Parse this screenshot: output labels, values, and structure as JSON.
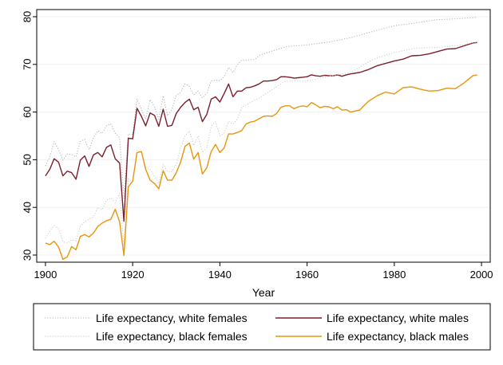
{
  "chart_data": {
    "type": "line",
    "xlabel": "Year",
    "ylabel": "",
    "xlim": [
      1898,
      2002
    ],
    "ylim": [
      28.5,
      81.5
    ],
    "xticks": [
      1900,
      1920,
      1940,
      1960,
      1980,
      2000
    ],
    "yticks": [
      30,
      40,
      50,
      60,
      70,
      80
    ],
    "grid": "horizontal",
    "legend_position": "bottom",
    "colors": {
      "white_females": "#b0b0b0",
      "white_males": "#7a1f2b",
      "black_females": "#c8c8c8",
      "black_males": "#e8950b",
      "grid": "#eef0f3",
      "plot_border": "#000000",
      "legend_border": "#000000"
    },
    "series": [
      {
        "name": "Life expectancy, white females",
        "style": "dotted",
        "x": [
          1900,
          1901,
          1902,
          1903,
          1904,
          1905,
          1906,
          1907,
          1908,
          1909,
          1910,
          1911,
          1912,
          1913,
          1914,
          1915,
          1916,
          1917,
          1918,
          1919,
          1920,
          1921,
          1922,
          1923,
          1924,
          1925,
          1926,
          1927,
          1928,
          1929,
          1930,
          1931,
          1932,
          1933,
          1934,
          1935,
          1936,
          1937,
          1938,
          1939,
          1940,
          1941,
          1942,
          1943,
          1944,
          1945,
          1946,
          1947,
          1948,
          1949,
          1950,
          1955,
          1960,
          1965,
          1970,
          1975,
          1980,
          1985,
          1990,
          1995,
          1999
        ],
        "values": [
          48.7,
          50.6,
          53.8,
          52.1,
          49.9,
          51.2,
          51.1,
          50.6,
          53.8,
          54.3,
          52.1,
          54.6,
          56.1,
          55.5,
          57.1,
          57.5,
          55.6,
          54.6,
          41.9,
          55.4,
          55.3,
          62.7,
          60.6,
          58.5,
          62.6,
          61.1,
          58.5,
          63.4,
          59.2,
          60.5,
          63.5,
          64.1,
          65.9,
          65.4,
          63.6,
          64.4,
          63.0,
          63.9,
          66.5,
          66.7,
          66.6,
          67.4,
          69.4,
          68.3,
          69.9,
          70.9,
          70.9,
          71.0,
          71.0,
          71.9,
          72.2,
          73.7,
          74.1,
          74.7,
          75.6,
          76.9,
          78.1,
          78.7,
          79.4,
          79.6,
          79.9
        ]
      },
      {
        "name": "Life expectancy, white males",
        "style": "solid",
        "x": [
          1900,
          1901,
          1902,
          1903,
          1904,
          1905,
          1906,
          1907,
          1908,
          1909,
          1910,
          1911,
          1912,
          1913,
          1914,
          1915,
          1916,
          1917,
          1918,
          1919,
          1920,
          1921,
          1922,
          1923,
          1924,
          1925,
          1926,
          1927,
          1928,
          1929,
          1930,
          1931,
          1932,
          1933,
          1934,
          1935,
          1936,
          1937,
          1938,
          1939,
          1940,
          1941,
          1942,
          1943,
          1944,
          1945,
          1946,
          1947,
          1948,
          1949,
          1950,
          1951,
          1952,
          1953,
          1954,
          1955,
          1956,
          1957,
          1958,
          1959,
          1960,
          1961,
          1962,
          1963,
          1964,
          1965,
          1966,
          1967,
          1968,
          1969,
          1970,
          1972,
          1974,
          1976,
          1978,
          1980,
          1982,
          1984,
          1986,
          1988,
          1990,
          1992,
          1994,
          1996,
          1998,
          1999
        ],
        "values": [
          46.6,
          48.0,
          50.2,
          49.5,
          46.6,
          47.6,
          47.3,
          45.9,
          49.9,
          50.8,
          48.6,
          51.0,
          51.5,
          50.6,
          52.6,
          53.1,
          50.2,
          49.3,
          37.1,
          54.5,
          54.4,
          60.8,
          59.1,
          57.1,
          59.8,
          59.3,
          57.0,
          60.6,
          57.0,
          57.2,
          59.7,
          61.0,
          62.0,
          62.7,
          60.5,
          61.0,
          58.0,
          59.5,
          62.7,
          63.2,
          62.1,
          63.9,
          65.9,
          63.2,
          64.4,
          64.4,
          65.1,
          65.2,
          65.5,
          65.9,
          66.5,
          66.5,
          66.6,
          66.8,
          67.4,
          67.4,
          67.3,
          67.1,
          67.2,
          67.3,
          67.4,
          67.8,
          67.6,
          67.5,
          67.7,
          67.6,
          67.6,
          67.8,
          67.5,
          67.8,
          68.0,
          68.3,
          68.9,
          69.7,
          70.2,
          70.7,
          71.1,
          71.8,
          71.9,
          72.2,
          72.7,
          73.2,
          73.3,
          73.9,
          74.5,
          74.6
        ]
      },
      {
        "name": "Life expectancy, black females",
        "style": "dotted",
        "x": [
          1900,
          1901,
          1902,
          1903,
          1904,
          1905,
          1906,
          1907,
          1908,
          1909,
          1910,
          1911,
          1912,
          1913,
          1914,
          1915,
          1916,
          1917,
          1918,
          1919,
          1920,
          1921,
          1922,
          1923,
          1924,
          1925,
          1926,
          1927,
          1928,
          1929,
          1930,
          1931,
          1932,
          1933,
          1934,
          1935,
          1936,
          1937,
          1938,
          1939,
          1940,
          1941,
          1942,
          1943,
          1944,
          1945,
          1946,
          1947,
          1948,
          1949,
          1950,
          1955,
          1960,
          1965,
          1970,
          1975,
          1980,
          1985,
          1990,
          1995,
          1999
        ],
        "values": [
          33.5,
          35.0,
          36.2,
          35.5,
          32.8,
          32.5,
          33.2,
          33.0,
          36.0,
          37.0,
          37.5,
          38.0,
          40.0,
          39.5,
          41.5,
          42.0,
          41.0,
          43.0,
          32.0,
          46.0,
          45.2,
          52.0,
          51.5,
          48.5,
          48.0,
          46.5,
          45.0,
          49.0,
          47.5,
          47.5,
          49.0,
          52.5,
          55.0,
          56.0,
          53.0,
          55.0,
          51.5,
          52.5,
          57.0,
          58.0,
          55.0,
          55.5,
          58.0,
          57.5,
          58.5,
          61.0,
          61.5,
          62.0,
          62.5,
          63.0,
          63.5,
          66.5,
          66.5,
          67.5,
          68.3,
          71.0,
          72.5,
          73.4,
          73.6,
          74.0,
          74.7
        ]
      },
      {
        "name": "Life expectancy, black males",
        "style": "solid",
        "x": [
          1900,
          1901,
          1902,
          1903,
          1904,
          1905,
          1906,
          1907,
          1908,
          1909,
          1910,
          1911,
          1912,
          1913,
          1914,
          1915,
          1916,
          1917,
          1918,
          1919,
          1920,
          1921,
          1922,
          1923,
          1924,
          1925,
          1926,
          1927,
          1928,
          1929,
          1930,
          1931,
          1932,
          1933,
          1934,
          1935,
          1936,
          1937,
          1938,
          1939,
          1940,
          1941,
          1942,
          1943,
          1944,
          1945,
          1946,
          1947,
          1948,
          1949,
          1950,
          1951,
          1952,
          1953,
          1954,
          1955,
          1956,
          1957,
          1958,
          1959,
          1960,
          1961,
          1962,
          1963,
          1964,
          1965,
          1966,
          1967,
          1968,
          1969,
          1970,
          1972,
          1974,
          1976,
          1978,
          1980,
          1982,
          1984,
          1986,
          1988,
          1990,
          1992,
          1994,
          1996,
          1998,
          1999
        ],
        "values": [
          32.5,
          32.2,
          32.9,
          31.7,
          29.1,
          29.6,
          31.8,
          31.1,
          33.9,
          34.3,
          33.8,
          34.6,
          36.0,
          36.7,
          37.2,
          37.5,
          39.6,
          37.0,
          29.9,
          44.3,
          45.5,
          51.5,
          51.7,
          48.0,
          45.7,
          45.0,
          43.9,
          47.7,
          45.7,
          45.7,
          47.3,
          49.5,
          52.8,
          53.5,
          50.1,
          51.5,
          47.0,
          48.3,
          51.7,
          53.2,
          51.5,
          52.5,
          55.4,
          55.4,
          55.7,
          56.1,
          57.5,
          57.9,
          58.1,
          58.6,
          59.1,
          59.2,
          59.1,
          59.7,
          61.0,
          61.3,
          61.3,
          60.7,
          61.1,
          61.3,
          61.1,
          62.0,
          61.5,
          60.9,
          61.2,
          61.1,
          60.7,
          61.1,
          60.4,
          60.5,
          60.0,
          60.4,
          62.2,
          63.4,
          64.2,
          63.8,
          65.1,
          65.3,
          64.8,
          64.4,
          64.5,
          65.0,
          64.9,
          66.1,
          67.6,
          67.8
        ]
      }
    ]
  }
}
